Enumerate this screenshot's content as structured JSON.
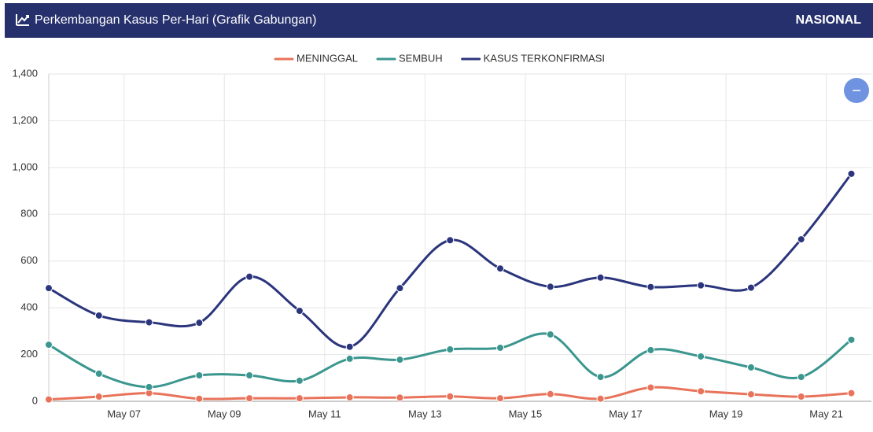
{
  "header": {
    "title": "Perkembangan Kasus Per-Hari (Grafik Gabungan)",
    "region": "NASIONAL"
  },
  "chart_data": {
    "type": "line",
    "x": [
      5.5,
      6.5,
      7.5,
      8.5,
      9.5,
      10.5,
      11.5,
      12.5,
      13.5,
      14.5,
      15.5,
      16.5,
      17.5,
      18.5,
      19.5,
      20.5,
      21.5
    ],
    "xlim": [
      5.5,
      21.9
    ],
    "xticks": [
      {
        "value": 7,
        "label": "May 07"
      },
      {
        "value": 9,
        "label": "May 09"
      },
      {
        "value": 11,
        "label": "May 11"
      },
      {
        "value": 13,
        "label": "May 13"
      },
      {
        "value": 15,
        "label": "May 15"
      },
      {
        "value": 17,
        "label": "May 17"
      },
      {
        "value": 19,
        "label": "May 19"
      },
      {
        "value": 21,
        "label": "May 21"
      }
    ],
    "ylim": [
      0,
      1400
    ],
    "yticks": [
      0,
      200,
      400,
      600,
      800,
      {
        "value": 1000,
        "label": "1,000"
      },
      {
        "value": 1200,
        "label": "1,200"
      },
      {
        "value": 1400,
        "label": "1,400"
      }
    ],
    "grid": true,
    "legend": "top",
    "series": [
      {
        "name": "MENINGGAL",
        "color": "#e8735a",
        "values": [
          8,
          20,
          35,
          11,
          13,
          13,
          17,
          16,
          21,
          13,
          31,
          11,
          59,
          43,
          30,
          20,
          35
        ]
      },
      {
        "name": "SEMBUH",
        "color": "#3a968e",
        "values": [
          242,
          118,
          61,
          111,
          111,
          88,
          182,
          178,
          222,
          229,
          286,
          104,
          219,
          192,
          145,
          104,
          263
        ]
      },
      {
        "name": "KASUS TERKONFIRMASI",
        "color": "#2b357c",
        "values": [
          484,
          367,
          338,
          336,
          533,
          387,
          233,
          484,
          689,
          568,
          490,
          529,
          489,
          496,
          486,
          693,
          973
        ]
      }
    ]
  }
}
